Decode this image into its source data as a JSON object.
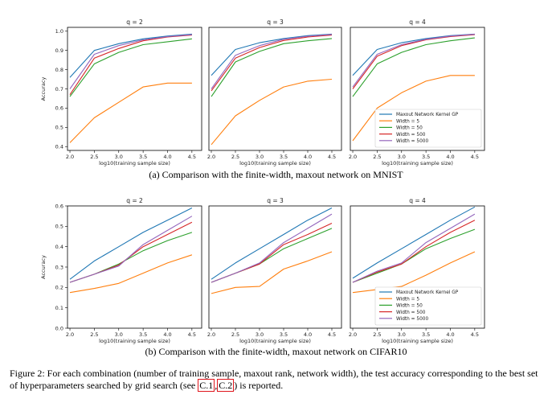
{
  "figure": {
    "caption_prefix": "Figure 2: For each combination (number of training sample, maxout rank, network width), the test accuracy corresponding to the best set of hyperparameters searched by grid search (see ",
    "ref1": "C.1",
    "ref_sep": ",",
    "ref2": "C.2",
    "caption_suffix": ") is reported."
  },
  "subfig_a": {
    "caption": "(a) Comparison with the finite-width, maxout network on MNIST"
  },
  "subfig_b": {
    "caption": "(b) Comparison with the finite-width, maxout network on CIFAR10"
  },
  "colors": {
    "Maxout Network Kernel GP": "#1f77b4",
    "Width = 5": "#ff7f0e",
    "Width = 50": "#2ca02c",
    "Width = 500": "#d62728",
    "Width = 5000": "#9467bd"
  },
  "chart_data": [
    {
      "type": "line",
      "panel": "mnist-q2",
      "title": "q = 2",
      "xlabel": "log10(training sample size)",
      "ylabel": "Accuracy",
      "xlim": [
        1.95,
        4.7
      ],
      "ylim": [
        0.38,
        1.02
      ],
      "xticks": [
        2.0,
        2.5,
        3.0,
        3.5,
        4.0,
        4.5
      ],
      "yticks": [
        0.4,
        0.5,
        0.6,
        0.7,
        0.8,
        0.9,
        1.0
      ],
      "x": [
        2.0,
        2.5,
        3.0,
        3.5,
        4.0,
        4.5
      ],
      "series": [
        {
          "name": "Maxout Network Kernel GP",
          "values": [
            0.76,
            0.9,
            0.935,
            0.96,
            0.975,
            0.985
          ]
        },
        {
          "name": "Width = 5",
          "values": [
            0.42,
            0.55,
            0.63,
            0.71,
            0.73,
            0.73
          ]
        },
        {
          "name": "Width = 50",
          "values": [
            0.66,
            0.83,
            0.89,
            0.93,
            0.945,
            0.96
          ]
        },
        {
          "name": "Width = 500",
          "values": [
            0.67,
            0.86,
            0.91,
            0.95,
            0.97,
            0.98
          ]
        },
        {
          "name": "Width = 5000",
          "values": [
            0.7,
            0.88,
            0.925,
            0.955,
            0.972,
            0.982
          ]
        }
      ],
      "legend": false
    },
    {
      "type": "line",
      "panel": "mnist-q3",
      "title": "q = 3",
      "xlabel": "log10(training sample size)",
      "ylabel": "",
      "xlim": [
        1.95,
        4.7
      ],
      "ylim": [
        0.38,
        1.02
      ],
      "xticks": [
        2.0,
        2.5,
        3.0,
        3.5,
        4.0,
        4.5
      ],
      "yticks": [],
      "x": [
        2.0,
        2.5,
        3.0,
        3.5,
        4.0,
        4.5
      ],
      "series": [
        {
          "name": "Maxout Network Kernel GP",
          "values": [
            0.77,
            0.905,
            0.94,
            0.962,
            0.977,
            0.985
          ]
        },
        {
          "name": "Width = 5",
          "values": [
            0.41,
            0.56,
            0.64,
            0.71,
            0.74,
            0.75
          ]
        },
        {
          "name": "Width = 50",
          "values": [
            0.66,
            0.84,
            0.895,
            0.935,
            0.95,
            0.962
          ]
        },
        {
          "name": "Width = 500",
          "values": [
            0.69,
            0.86,
            0.915,
            0.952,
            0.97,
            0.98
          ]
        },
        {
          "name": "Width = 5000",
          "values": [
            0.7,
            0.875,
            0.925,
            0.958,
            0.974,
            0.983
          ]
        }
      ],
      "legend": false
    },
    {
      "type": "line",
      "panel": "mnist-q4",
      "title": "q = 4",
      "xlabel": "log10(training sample size)",
      "ylabel": "",
      "xlim": [
        1.95,
        4.7
      ],
      "ylim": [
        0.38,
        1.02
      ],
      "xticks": [
        2.0,
        2.5,
        3.0,
        3.5,
        4.0,
        4.5
      ],
      "yticks": [],
      "x": [
        2.0,
        2.5,
        3.0,
        3.5,
        4.0,
        4.5
      ],
      "series": [
        {
          "name": "Maxout Network Kernel GP",
          "values": [
            0.77,
            0.905,
            0.94,
            0.962,
            0.977,
            0.985
          ]
        },
        {
          "name": "Width = 5",
          "values": [
            0.43,
            0.6,
            0.68,
            0.74,
            0.77,
            0.77
          ]
        },
        {
          "name": "Width = 50",
          "values": [
            0.66,
            0.83,
            0.89,
            0.93,
            0.95,
            0.965
          ]
        },
        {
          "name": "Width = 500",
          "values": [
            0.7,
            0.87,
            0.925,
            0.955,
            0.972,
            0.982
          ]
        },
        {
          "name": "Width = 5000",
          "values": [
            0.71,
            0.88,
            0.93,
            0.958,
            0.975,
            0.984
          ]
        }
      ],
      "legend": true
    },
    {
      "type": "line",
      "panel": "cifar-q2",
      "title": "q = 2",
      "xlabel": "log10(training sample size)",
      "ylabel": "Accuracy",
      "xlim": [
        1.95,
        4.7
      ],
      "ylim": [
        0.0,
        0.6
      ],
      "xticks": [
        2.0,
        2.5,
        3.0,
        3.5,
        4.0,
        4.5
      ],
      "yticks": [
        0.0,
        0.1,
        0.2,
        0.3,
        0.4,
        0.5,
        0.6
      ],
      "x": [
        2.0,
        2.5,
        3.0,
        3.5,
        4.0,
        4.5
      ],
      "series": [
        {
          "name": "Maxout Network Kernel GP",
          "values": [
            0.24,
            0.33,
            0.4,
            0.47,
            0.53,
            0.59
          ]
        },
        {
          "name": "Width = 5",
          "values": [
            0.175,
            0.195,
            0.22,
            0.27,
            0.32,
            0.36
          ]
        },
        {
          "name": "Width = 50",
          "values": [
            0.225,
            0.265,
            0.315,
            0.38,
            0.43,
            0.47
          ]
        },
        {
          "name": "Width = 500",
          "values": [
            0.225,
            0.265,
            0.31,
            0.4,
            0.46,
            0.52
          ]
        },
        {
          "name": "Width = 5000",
          "values": [
            0.225,
            0.265,
            0.305,
            0.41,
            0.48,
            0.55
          ]
        }
      ],
      "legend": false
    },
    {
      "type": "line",
      "panel": "cifar-q3",
      "title": "q = 3",
      "xlabel": "log10(training sample size)",
      "ylabel": "",
      "xlim": [
        1.95,
        4.7
      ],
      "ylim": [
        0.0,
        0.6
      ],
      "xticks": [
        2.0,
        2.5,
        3.0,
        3.5,
        4.0,
        4.5
      ],
      "yticks": [],
      "x": [
        2.0,
        2.5,
        3.0,
        3.5,
        4.0,
        4.5
      ],
      "series": [
        {
          "name": "Maxout Network Kernel GP",
          "values": [
            0.24,
            0.32,
            0.39,
            0.46,
            0.53,
            0.59
          ]
        },
        {
          "name": "Width = 5",
          "values": [
            0.17,
            0.2,
            0.205,
            0.29,
            0.33,
            0.375
          ]
        },
        {
          "name": "Width = 50",
          "values": [
            0.225,
            0.27,
            0.315,
            0.39,
            0.44,
            0.49
          ]
        },
        {
          "name": "Width = 500",
          "values": [
            0.225,
            0.27,
            0.315,
            0.41,
            0.46,
            0.515
          ]
        },
        {
          "name": "Width = 5000",
          "values": [
            0.225,
            0.27,
            0.32,
            0.42,
            0.49,
            0.56
          ]
        }
      ],
      "legend": false
    },
    {
      "type": "line",
      "panel": "cifar-q4",
      "title": "q = 4",
      "xlabel": "log10(training sample size)",
      "ylabel": "",
      "xlim": [
        1.95,
        4.7
      ],
      "ylim": [
        0.0,
        0.6
      ],
      "xticks": [
        2.0,
        2.5,
        3.0,
        3.5,
        4.0,
        4.5
      ],
      "yticks": [],
      "x": [
        2.0,
        2.5,
        3.0,
        3.5,
        4.0,
        4.5
      ],
      "series": [
        {
          "name": "Maxout Network Kernel GP",
          "values": [
            0.245,
            0.32,
            0.39,
            0.46,
            0.53,
            0.595
          ]
        },
        {
          "name": "Width = 5",
          "values": [
            0.175,
            0.19,
            0.205,
            0.26,
            0.32,
            0.375
          ]
        },
        {
          "name": "Width = 50",
          "values": [
            0.225,
            0.27,
            0.315,
            0.39,
            0.44,
            0.485
          ]
        },
        {
          "name": "Width = 500",
          "values": [
            0.225,
            0.275,
            0.315,
            0.4,
            0.47,
            0.53
          ]
        },
        {
          "name": "Width = 5000",
          "values": [
            0.225,
            0.28,
            0.32,
            0.42,
            0.49,
            0.56
          ]
        }
      ],
      "legend": true
    }
  ]
}
